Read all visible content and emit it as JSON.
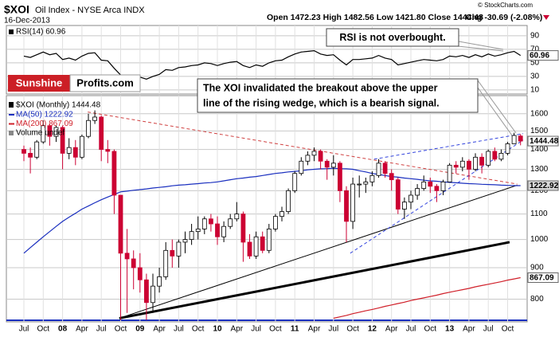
{
  "header": {
    "symbol": "$XOI",
    "name": "Oil Index - NYSE Arca INDX",
    "date": "16-Dec-2013",
    "quote": "Open 1472.23 High 1482.56 Low 1421.80 Close 1444.48",
    "change": "Chg -30.69 (-2.08%)",
    "copyright": "© StockCharts.com"
  },
  "logo": {
    "part1": "Sunshine",
    "part2": "Profits.com"
  },
  "chart_data": [
    {
      "type": "line",
      "grid": true,
      "ylim": [
        4,
        104
      ],
      "yticks": [
        10,
        30,
        50,
        70,
        90
      ],
      "annotation": "RSI is not overbought.",
      "series": [
        {
          "name": "RSI(14) 60.96",
          "color": "#000000",
          "last_label": "60.96",
          "values": [
            60,
            58,
            62,
            66,
            62,
            64,
            55,
            57,
            54,
            60,
            64,
            65,
            54,
            53,
            42,
            32,
            31,
            30,
            29,
            26,
            30,
            33,
            40,
            39,
            43,
            44,
            46,
            47,
            50,
            49,
            46,
            49,
            51,
            52,
            46,
            43,
            47,
            45,
            50,
            53,
            54,
            59,
            63,
            66,
            67,
            68,
            63,
            61,
            62,
            54,
            47,
            55,
            55,
            56,
            57,
            61,
            57,
            55,
            47,
            49,
            51,
            53,
            55,
            54,
            53,
            55,
            60,
            59,
            61,
            58,
            62,
            59,
            63,
            60,
            62,
            65,
            67,
            60.96
          ]
        }
      ]
    },
    {
      "type": "candlestick",
      "name": "$XOI (Monthly) 1444.48",
      "last_label": "1444.48",
      "up_color": "#ffffff",
      "down_color": "#cc0033",
      "log_scale": true,
      "grid": true,
      "ylim": [
        735,
        1712
      ],
      "yticks": [
        800,
        900,
        1000,
        1100,
        1200,
        1300,
        1400,
        1500,
        1600
      ],
      "categories": [
        "Jul",
        null,
        null,
        "Oct",
        null,
        null,
        "08",
        null,
        null,
        "Apr",
        null,
        null,
        "Jul",
        null,
        null,
        "Oct",
        null,
        null,
        "09",
        null,
        null,
        "Apr",
        null,
        null,
        "Jul",
        null,
        null,
        "Oct",
        null,
        null,
        "10",
        null,
        null,
        "Apr",
        null,
        null,
        "Jul",
        null,
        null,
        "Oct",
        null,
        null,
        "11",
        null,
        null,
        "Apr",
        null,
        null,
        "Jul",
        null,
        null,
        "Oct",
        null,
        null,
        "12",
        null,
        null,
        "Apr",
        null,
        null,
        "Jul",
        null,
        null,
        "Oct",
        null,
        null,
        "13",
        null,
        null,
        "Apr",
        null,
        null,
        "Jul",
        null,
        null,
        "Oct",
        null,
        null
      ],
      "open": [
        1400,
        1380,
        1360,
        1440,
        1530,
        1470,
        1520,
        1380,
        1410,
        1360,
        1470,
        1560,
        1580,
        1400,
        1390,
        1180,
        950,
        930,
        900,
        860,
        790,
        840,
        870,
        960,
        940,
        990,
        1000,
        1030,
        1040,
        1080,
        1060,
        1010,
        1050,
        1080,
        1100,
        990,
        940,
        1010,
        960,
        1040,
        1090,
        1110,
        1200,
        1280,
        1340,
        1370,
        1390,
        1340,
        1310,
        1330,
        1200,
        1070,
        1230,
        1230,
        1240,
        1270,
        1330,
        1280,
        1250,
        1120,
        1150,
        1180,
        1210,
        1240,
        1220,
        1200,
        1240,
        1320,
        1310,
        1340,
        1300,
        1360,
        1320,
        1390,
        1350,
        1380,
        1430,
        1472.23
      ],
      "high": [
        1420,
        1410,
        1450,
        1560,
        1540,
        1530,
        1530,
        1460,
        1450,
        1480,
        1600,
        1620,
        1590,
        1450,
        1400,
        1180,
        1040,
        960,
        950,
        880,
        880,
        900,
        990,
        1000,
        1000,
        1030,
        1060,
        1090,
        1090,
        1100,
        1090,
        1070,
        1100,
        1150,
        1110,
        1020,
        1030,
        1030,
        1060,
        1100,
        1130,
        1210,
        1290,
        1360,
        1390,
        1410,
        1400,
        1350,
        1370,
        1340,
        1220,
        1260,
        1270,
        1260,
        1290,
        1350,
        1340,
        1300,
        1260,
        1170,
        1200,
        1230,
        1270,
        1260,
        1230,
        1250,
        1330,
        1340,
        1360,
        1350,
        1380,
        1380,
        1400,
        1410,
        1400,
        1440,
        1490,
        1482.56
      ],
      "low": [
        1340,
        1280,
        1350,
        1430,
        1420,
        1440,
        1300,
        1350,
        1320,
        1350,
        1460,
        1540,
        1340,
        1330,
        1100,
        740,
        760,
        830,
        820,
        740,
        760,
        820,
        860,
        900,
        900,
        950,
        980,
        1000,
        1020,
        1030,
        980,
        990,
        1040,
        1070,
        920,
        930,
        930,
        950,
        950,
        1030,
        1070,
        1100,
        1190,
        1270,
        1320,
        1340,
        1300,
        1250,
        1270,
        1150,
        990,
        1040,
        1170,
        1190,
        1220,
        1260,
        1260,
        1200,
        1100,
        1080,
        1120,
        1160,
        1200,
        1190,
        1150,
        1180,
        1240,
        1280,
        1290,
        1250,
        1290,
        1280,
        1310,
        1340,
        1340,
        1370,
        1430,
        1421.8
      ],
      "close": [
        1380,
        1360,
        1440,
        1530,
        1470,
        1520,
        1380,
        1410,
        1360,
        1470,
        1560,
        1580,
        1400,
        1390,
        1180,
        950,
        930,
        900,
        860,
        790,
        840,
        870,
        960,
        940,
        990,
        1000,
        1030,
        1040,
        1080,
        1060,
        1010,
        1050,
        1080,
        1100,
        990,
        940,
        1010,
        960,
        1040,
        1090,
        1110,
        1200,
        1280,
        1340,
        1370,
        1390,
        1340,
        1310,
        1330,
        1200,
        1070,
        1230,
        1230,
        1240,
        1270,
        1330,
        1280,
        1250,
        1120,
        1150,
        1180,
        1210,
        1240,
        1220,
        1200,
        1240,
        1320,
        1310,
        1340,
        1300,
        1360,
        1320,
        1390,
        1350,
        1380,
        1430,
        1475.17,
        1444.48
      ],
      "series": [
        {
          "name": "MA(50) 1222.92",
          "color": "#1a2fbf",
          "last_label": "1222.92",
          "values": [
            950,
            970,
            990,
            1010,
            1030,
            1050,
            1070,
            1087,
            1103,
            1120,
            1133,
            1147,
            1160,
            1172,
            1183,
            1195,
            1198,
            1202,
            1205,
            1208,
            1212,
            1215,
            1218,
            1222,
            1225,
            1227,
            1230,
            1232,
            1235,
            1237,
            1240,
            1245,
            1250,
            1255,
            1258,
            1262,
            1265,
            1270,
            1275,
            1280,
            1283,
            1287,
            1290,
            1293,
            1297,
            1300,
            1302,
            1303,
            1305,
            1303,
            1302,
            1300,
            1293,
            1287,
            1280,
            1275,
            1270,
            1265,
            1262,
            1258,
            1255,
            1252,
            1248,
            1245,
            1243,
            1240,
            1238,
            1236,
            1234,
            1232,
            1231,
            1229,
            1228,
            1227,
            1225,
            1224,
            1223,
            1222.92
          ]
        },
        {
          "name": "MA(200) 867.09",
          "color": "#d0202a",
          "last_label": "867.09",
          "values": [
            null,
            null,
            null,
            null,
            null,
            null,
            null,
            null,
            null,
            null,
            null,
            null,
            null,
            null,
            null,
            null,
            null,
            null,
            null,
            null,
            null,
            null,
            null,
            null,
            null,
            null,
            null,
            null,
            null,
            null,
            null,
            null,
            null,
            null,
            null,
            null,
            null,
            null,
            null,
            null,
            null,
            null,
            null,
            null,
            null,
            null,
            null,
            null,
            745,
            749,
            753,
            758,
            762,
            766,
            770,
            774,
            779,
            783,
            787,
            791,
            796,
            800,
            804,
            808,
            812,
            817,
            821,
            825,
            829,
            833,
            838,
            842,
            846,
            850,
            854,
            859,
            863,
            867.09
          ]
        }
      ],
      "extra_legend": "Volume undef",
      "trendlines": [
        {
          "from": [
            9.9,
            1610
          ],
          "to": [
            76.5,
            1230
          ],
          "color": "#d04040",
          "dash": true,
          "width": 1
        },
        {
          "from": [
            14.8,
            745
          ],
          "to": [
            76.5,
            1225
          ],
          "color": "#000000",
          "dash": false,
          "width": 1
        },
        {
          "from": [
            14.8,
            745
          ],
          "to": [
            75.3,
            990
          ],
          "color": "#000000",
          "dash": false,
          "width": 3
        },
        {
          "from": [
            54.3,
            1350
          ],
          "to": [
            77.4,
            1485
          ],
          "color": "#3344dd",
          "dash": true,
          "width": 1
        },
        {
          "from": [
            50.6,
            950
          ],
          "to": [
            77.4,
            1450
          ],
          "color": "#3344dd",
          "dash": true,
          "width": 1
        }
      ],
      "annotation": [
        "The XOI invalidated the breakout above the upper",
        "line of the rising wedge, which is a bearish signal."
      ]
    }
  ]
}
